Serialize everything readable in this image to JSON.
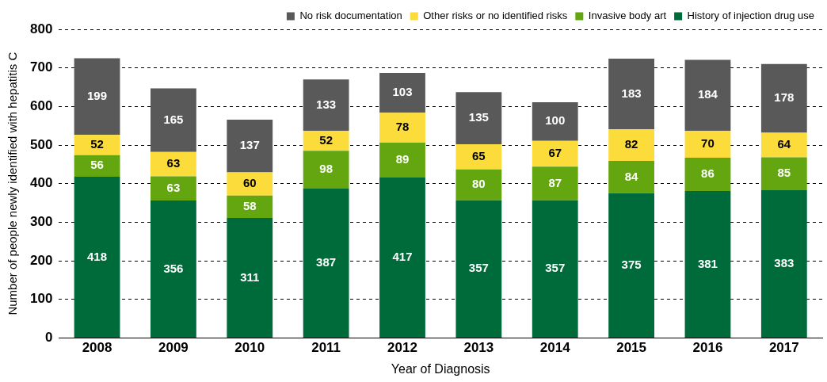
{
  "chart_data": {
    "type": "bar",
    "stacked": true,
    "xlabel": "Year of Diagnosis",
    "ylabel": "Number of people newly identified with hepatitis C",
    "categories": [
      "2008",
      "2009",
      "2010",
      "2011",
      "2012",
      "2013",
      "2014",
      "2015",
      "2016",
      "2017"
    ],
    "series": [
      {
        "name": "History of injection drug use",
        "color": "#006b3a",
        "values": [
          418,
          356,
          311,
          387,
          417,
          357,
          357,
          375,
          381,
          383
        ]
      },
      {
        "name": "Invasive body art",
        "color": "#63a60f",
        "values": [
          56,
          63,
          58,
          98,
          89,
          80,
          87,
          84,
          86,
          85
        ]
      },
      {
        "name": "Other risks or no identified risks",
        "color": "#fcdc3b",
        "values": [
          52,
          63,
          60,
          52,
          78,
          65,
          67,
          82,
          70,
          64
        ]
      },
      {
        "name": "No risk documentation",
        "color": "#595959",
        "values": [
          199,
          165,
          137,
          133,
          103,
          135,
          100,
          183,
          184,
          178
        ]
      }
    ],
    "ylim": [
      0,
      800
    ],
    "yticks": [
      0,
      100,
      200,
      300,
      400,
      500,
      600,
      700,
      800
    ],
    "grid": "y",
    "legend": "top right",
    "data_labels": true
  }
}
